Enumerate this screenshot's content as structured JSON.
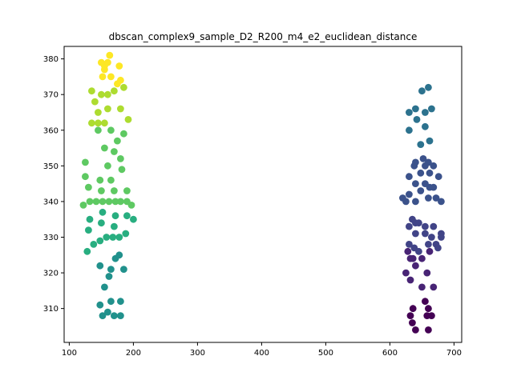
{
  "chart_data": {
    "type": "scatter",
    "title": "dbscan_complex9_sample_D2_R200_m4_e2_euclidean_distance",
    "xlabel": "",
    "ylabel": "",
    "xlim": [
      92,
      712
    ],
    "ylim": [
      300.5,
      383.5
    ],
    "xticks": [
      100,
      200,
      300,
      400,
      500,
      600,
      700
    ],
    "yticks": [
      310,
      320,
      330,
      340,
      350,
      360,
      370,
      380
    ],
    "grid": false,
    "colormap": "viridis",
    "series": [
      {
        "color": "#440154",
        "points": [
          [
            635,
            306
          ],
          [
            632,
            308
          ],
          [
            640,
            304
          ],
          [
            660,
            304
          ],
          [
            658,
            308
          ],
          [
            655,
            312
          ],
          [
            665,
            308
          ],
          [
            636,
            310
          ],
          [
            660,
            310
          ]
        ]
      },
      {
        "color": "#482475",
        "points": [
          [
            650,
            316
          ],
          [
            668,
            316
          ],
          [
            632,
            318
          ],
          [
            625,
            320
          ],
          [
            658,
            320
          ],
          [
            640,
            322
          ],
          [
            632,
            324
          ],
          [
            628,
            326
          ],
          [
            636,
            324
          ],
          [
            650,
            324
          ],
          [
            662,
            326
          ]
        ]
      },
      {
        "color": "#414487",
        "points": [
          [
            638,
            327
          ],
          [
            645,
            326
          ],
          [
            630,
            328
          ],
          [
            660,
            328
          ],
          [
            672,
            328
          ],
          [
            680,
            330
          ],
          [
            665,
            330
          ],
          [
            655,
            331
          ],
          [
            640,
            331
          ],
          [
            630,
            333
          ],
          [
            640,
            334
          ],
          [
            655,
            333
          ],
          [
            668,
            333
          ],
          [
            680,
            331
          ],
          [
            675,
            327
          ],
          [
            635,
            335
          ],
          [
            645,
            334
          ]
        ]
      },
      {
        "color": "#3b528b",
        "points": [
          [
            625,
            340
          ],
          [
            640,
            340
          ],
          [
            660,
            341
          ],
          [
            672,
            341
          ],
          [
            680,
            340
          ],
          [
            630,
            342
          ],
          [
            648,
            343
          ],
          [
            662,
            344
          ],
          [
            620,
            341
          ],
          [
            640,
            345
          ],
          [
            655,
            345
          ],
          [
            668,
            344
          ],
          [
            630,
            347
          ],
          [
            648,
            348
          ],
          [
            662,
            348
          ],
          [
            676,
            347
          ],
          [
            638,
            350
          ],
          [
            655,
            350
          ],
          [
            668,
            350
          ],
          [
            640,
            351
          ],
          [
            652,
            352
          ],
          [
            660,
            351
          ]
        ]
      },
      {
        "color": "#2c728e",
        "points": [
          [
            648,
            356
          ],
          [
            662,
            357
          ],
          [
            630,
            360
          ],
          [
            655,
            361
          ],
          [
            642,
            363
          ],
          [
            630,
            365
          ],
          [
            655,
            365
          ],
          [
            640,
            366
          ],
          [
            665,
            366
          ],
          [
            650,
            371
          ],
          [
            660,
            372
          ]
        ]
      },
      {
        "color": "#21918c",
        "points": [
          [
            152,
            308
          ],
          [
            160,
            309
          ],
          [
            170,
            308
          ],
          [
            180,
            308
          ],
          [
            165,
            312
          ],
          [
            180,
            312
          ],
          [
            148,
            311
          ],
          [
            155,
            316
          ],
          [
            162,
            319
          ],
          [
            148,
            322
          ],
          [
            165,
            321
          ],
          [
            185,
            321
          ],
          [
            172,
            324
          ],
          [
            178,
            325
          ]
        ]
      },
      {
        "color": "#28ae80",
        "points": [
          [
            128,
            326
          ],
          [
            138,
            328
          ],
          [
            148,
            329
          ],
          [
            158,
            330
          ],
          [
            168,
            330
          ],
          [
            178,
            330
          ],
          [
            188,
            331
          ],
          [
            130,
            332
          ],
          [
            150,
            334
          ],
          [
            170,
            333
          ],
          [
            132,
            335
          ],
          [
            152,
            337
          ],
          [
            172,
            336
          ],
          [
            190,
            336
          ],
          [
            200,
            335
          ]
        ]
      },
      {
        "color": "#5ec962",
        "points": [
          [
            122,
            339
          ],
          [
            132,
            340
          ],
          [
            142,
            340
          ],
          [
            152,
            340
          ],
          [
            162,
            340
          ],
          [
            172,
            340
          ],
          [
            180,
            340
          ],
          [
            190,
            340
          ],
          [
            197,
            339
          ],
          [
            130,
            344
          ],
          [
            150,
            343
          ],
          [
            170,
            343
          ],
          [
            190,
            343
          ],
          [
            125,
            347
          ],
          [
            148,
            346
          ],
          [
            165,
            346
          ],
          [
            182,
            349
          ],
          [
            160,
            350
          ],
          [
            180,
            352
          ],
          [
            125,
            351
          ],
          [
            170,
            354
          ],
          [
            155,
            355
          ],
          [
            175,
            357
          ],
          [
            145,
            360
          ],
          [
            165,
            360
          ],
          [
            185,
            359
          ]
        ]
      },
      {
        "color": "#addc30",
        "points": [
          [
            135,
            362
          ],
          [
            145,
            362
          ],
          [
            155,
            362
          ],
          [
            192,
            363
          ],
          [
            145,
            365
          ],
          [
            160,
            366
          ],
          [
            180,
            366
          ],
          [
            140,
            368
          ],
          [
            150,
            370
          ],
          [
            160,
            370
          ],
          [
            170,
            371
          ],
          [
            185,
            372
          ],
          [
            135,
            371
          ]
        ]
      },
      {
        "color": "#fde725",
        "points": [
          [
            175,
            373
          ],
          [
            180,
            374
          ],
          [
            165,
            375
          ],
          [
            152,
            375
          ],
          [
            155,
            378
          ],
          [
            160,
            379
          ],
          [
            178,
            378
          ],
          [
            150,
            379
          ],
          [
            155,
            377
          ],
          [
            163,
            381
          ]
        ]
      }
    ]
  }
}
